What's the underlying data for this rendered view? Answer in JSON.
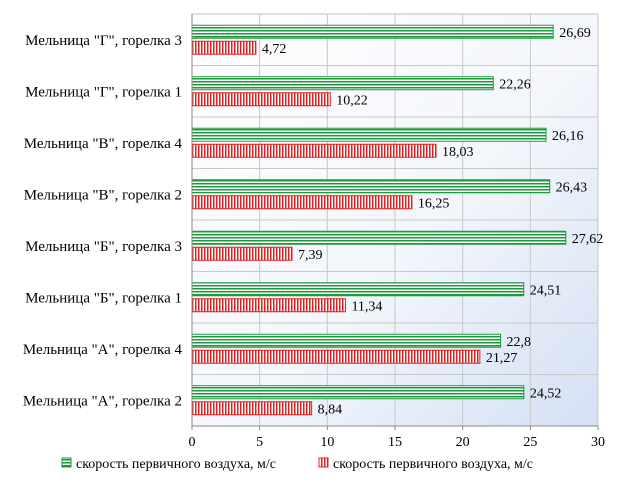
{
  "chart_data": {
    "type": "bar",
    "orientation": "horizontal",
    "categories": [
      "Мельница \"Г\", горелка 3",
      "Мельница \"Г\", горелка 1",
      "Мельница \"В\", горелка 4",
      "Мельница \"В\", горелка 2",
      "Мельница \"Б\", горелка 3",
      "Мельница \"Б\", горелка 1",
      "Мельница \"А\", горелка 4",
      "Мельница \"А\", горелка 2"
    ],
    "series": [
      {
        "name": "скорость первичного воздуха, м/с",
        "values": [
          26.69,
          22.26,
          26.16,
          26.43,
          27.62,
          24.51,
          22.8,
          24.52
        ],
        "labels": [
          "26,69",
          "22,26",
          "26,16",
          "26,43",
          "27,62",
          "24,51",
          "22,8",
          "24,52"
        ],
        "color": "#1a9a3a",
        "pattern": "horizontal-stripes"
      },
      {
        "name": "скорость первичного воздуха, м/с",
        "values": [
          4.72,
          10.22,
          18.03,
          16.25,
          7.39,
          11.34,
          21.27,
          8.84
        ],
        "labels": [
          "4,72",
          "10,22",
          "18,03",
          "16,25",
          "7,39",
          "11,34",
          "21,27",
          "8,84"
        ],
        "color": "#e02020",
        "pattern": "vertical-stripes"
      }
    ],
    "xlim": [
      0,
      30
    ],
    "xticks": [
      "0",
      "5",
      "10",
      "15",
      "20",
      "25",
      "30"
    ],
    "grid": true,
    "legend_position": "bottom",
    "background": "gradient-white-to-blue"
  }
}
